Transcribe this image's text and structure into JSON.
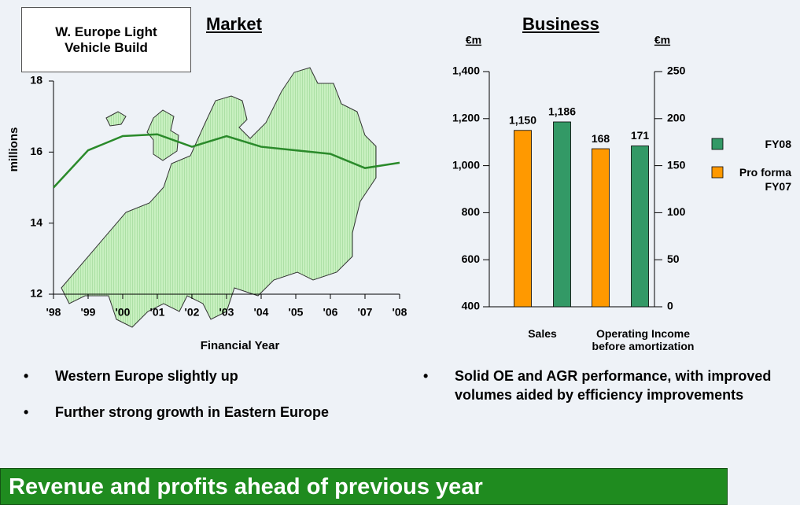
{
  "chart_data": [
    {
      "type": "line",
      "title": "Market",
      "subtitle": "W. Europe Light Vehicle Build",
      "x_label": "Financial Year",
      "y_label": "millions",
      "categories": [
        "'98",
        "'99",
        "'00",
        "'01",
        "'02",
        "'03",
        "'04",
        "'05",
        "'06",
        "'07",
        "'08"
      ],
      "values": [
        15.0,
        16.05,
        16.45,
        16.5,
        16.15,
        16.45,
        16.15,
        16.05,
        15.95,
        15.55,
        15.7
      ],
      "color": "#2a8a2a",
      "ylim": [
        12,
        18
      ],
      "yticks": [
        12,
        14,
        16,
        18
      ]
    },
    {
      "type": "bar",
      "title": "Business",
      "y_unit": "€m",
      "y2_unit": "€m",
      "categories": [
        "Sales",
        "Operating Income before amortization"
      ],
      "series": [
        {
          "name": "FY08",
          "color": "#339966",
          "values": [
            1186,
            171
          ],
          "value_labels": [
            "1,186",
            "171"
          ]
        },
        {
          "name": "Pro forma FY07",
          "color": "#ff9900",
          "values": [
            1150,
            168
          ],
          "value_labels": [
            "1,150",
            "168"
          ]
        }
      ],
      "category_axes": [
        "y",
        "y2"
      ],
      "ylim": [
        400,
        1400
      ],
      "yticks": [
        400,
        600,
        800,
        {
          "value": 1000,
          "label": "1,000"
        },
        {
          "value": 1200,
          "label": "1,200"
        },
        {
          "value": 1400,
          "label": "1,400"
        }
      ],
      "y2lim": [
        0,
        250
      ],
      "y2ticks": [
        0,
        50,
        100,
        150,
        200,
        250
      ],
      "legend": "right"
    }
  ],
  "bullets_left": [
    "Western Europe slightly up",
    "Further strong growth in Eastern Europe"
  ],
  "bullets_right": [
    "Solid OE and AGR performance, with improved volumes aided by efficiency improvements"
  ],
  "banner": "Revenue and profits ahead of previous year"
}
